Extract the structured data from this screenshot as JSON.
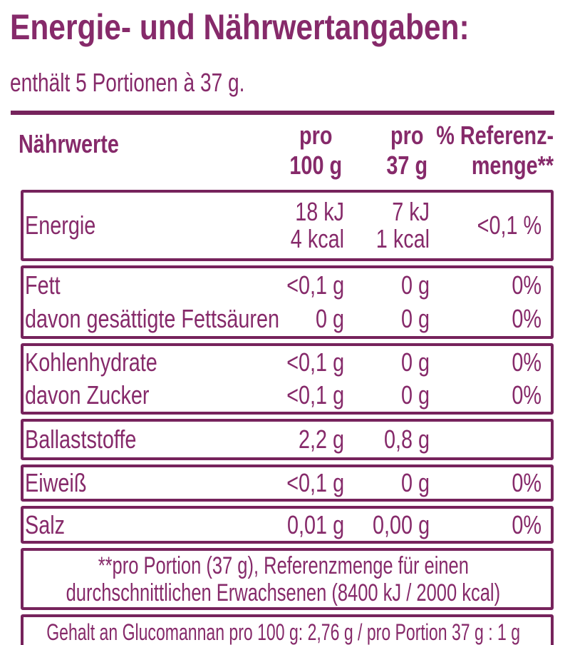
{
  "title": "Energie- und Nährwertangaben:",
  "subtitle": "enthält 5 Portionen à 37 g.",
  "colors": {
    "accent_text": "#862a6a",
    "border": "#76235c"
  },
  "table": {
    "header": {
      "nutrients": "Nährwerte",
      "per100_line1": "pro",
      "per100_line2": "100 g",
      "per37_line1": "pro",
      "per37_line2": "37 g",
      "ref_line1": "% Referenz-",
      "ref_line2": "menge**"
    },
    "rows": {
      "energie": {
        "label": "Energie",
        "per100_line1": "18 kJ",
        "per100_line2": "4 kcal",
        "per37_line1": "7 kJ",
        "per37_line2": "1 kcal",
        "ref": "<0,1 %"
      },
      "fett": {
        "label": "Fett",
        "per100": "<0,1 g",
        "per37": "0 g",
        "ref": "0%"
      },
      "fett_gesaettigt": {
        "label": "davon gesättigte Fettsäuren",
        "per100": "0 g",
        "per37": "0 g",
        "ref": "0%"
      },
      "kohlenhydrate": {
        "label": "Kohlenhydrate",
        "per100": "<0,1 g",
        "per37": "0 g",
        "ref": "0%"
      },
      "zucker": {
        "label": "davon Zucker",
        "per100": "<0,1 g",
        "per37": "0 g",
        "ref": "0%"
      },
      "ballaststoffe": {
        "label": "Ballaststoffe",
        "per100": "2,2 g",
        "per37": "0,8 g",
        "ref": ""
      },
      "eiweiss": {
        "label": "Eiweiß",
        "per100": "<0,1 g",
        "per37": "0 g",
        "ref": "0%"
      },
      "salz": {
        "label": "Salz",
        "per100": "0,01 g",
        "per37": "0,00 g",
        "ref": "0%"
      }
    }
  },
  "footnote": {
    "line1": "**pro Portion (37 g), Referenzmenge für einen",
    "line2": "durchschnittlichen Erwachsenen (8400 kJ / 2000 kcal)"
  },
  "glucomannan_note": "Gehalt an Glucomannan pro 100 g: 2,76 g / pro Portion 37 g : 1 g"
}
